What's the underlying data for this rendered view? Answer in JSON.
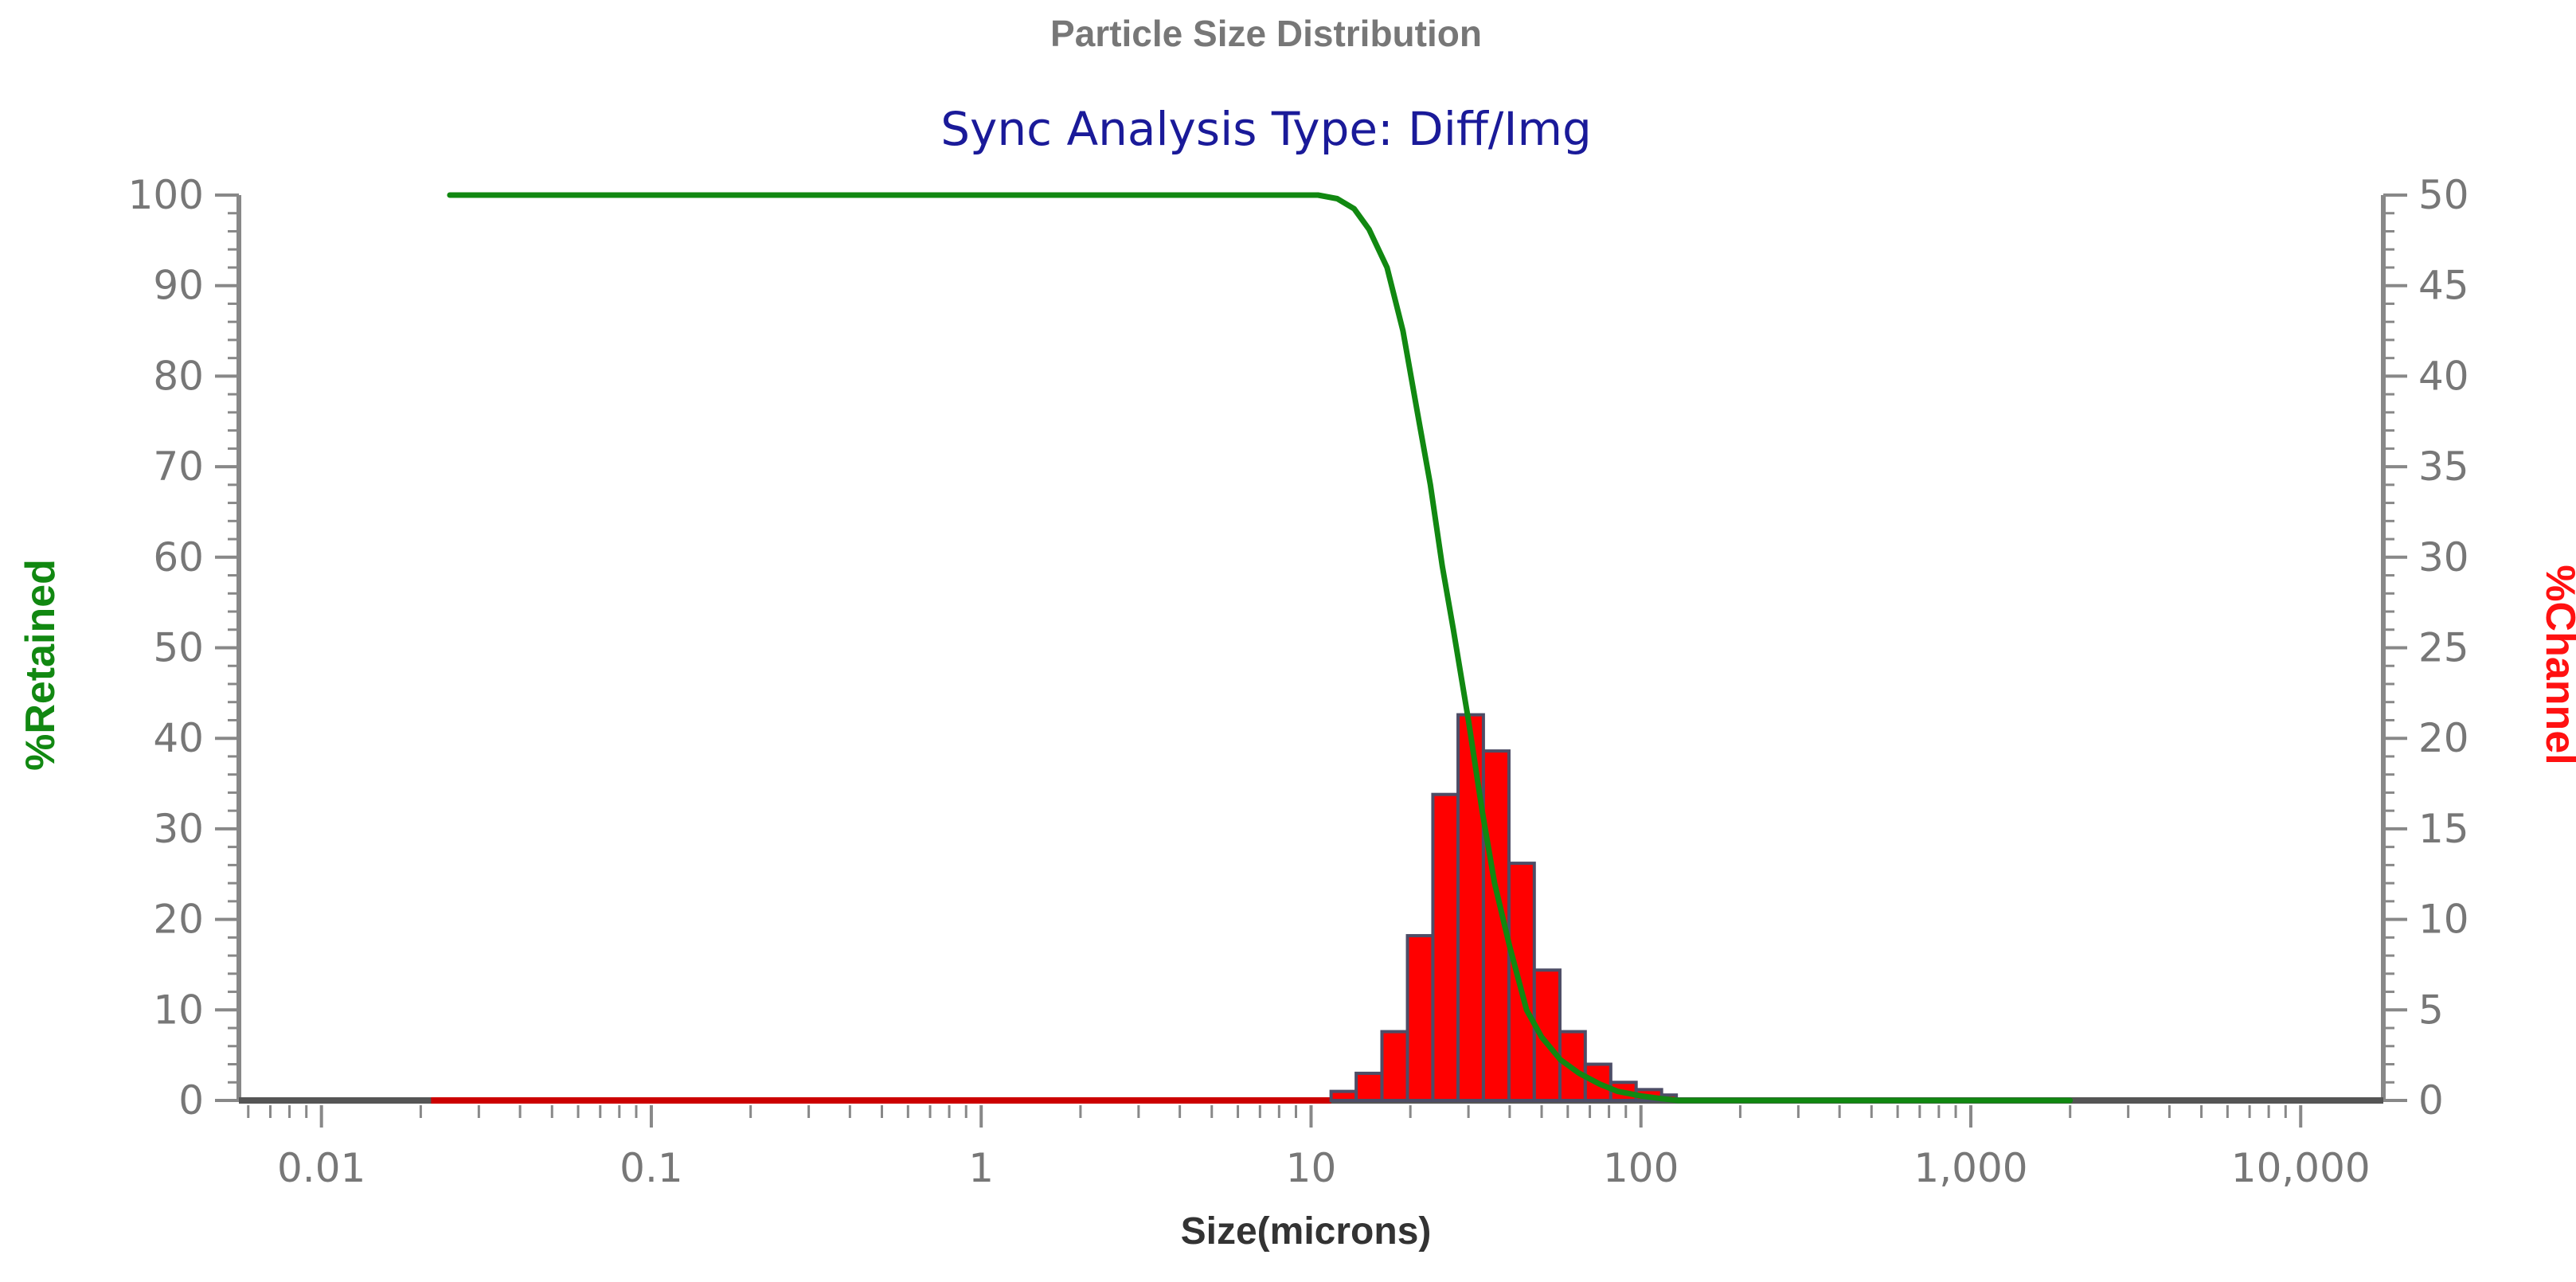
{
  "chart_data": {
    "type": "bar",
    "title": "Particle Size Distribution",
    "subtitle": "Sync Analysis Type: Diff/Img",
    "xlabel": "Size(microns)",
    "ylabel_left": "%Retained",
    "ylabel_right": "%Channel",
    "x_scale": "log",
    "xlim": [
      0.00562,
      17800
    ],
    "ylim_left": [
      0,
      100
    ],
    "ylim_right": [
      0,
      50
    ],
    "grid": false,
    "x_tick_labels": [
      {
        "value": 0.01,
        "label": "0.01"
      },
      {
        "value": 0.1,
        "label": "0.1"
      },
      {
        "value": 1,
        "label": "1"
      },
      {
        "value": 10,
        "label": "10"
      },
      {
        "value": 100,
        "label": "100"
      },
      {
        "value": 1000,
        "label": "1,000"
      },
      {
        "value": 10000,
        "label": "10,000"
      }
    ],
    "y_left_ticks": [
      0,
      10,
      20,
      30,
      40,
      50,
      60,
      70,
      80,
      90,
      100
    ],
    "y_right_ticks": [
      0,
      5,
      10,
      15,
      20,
      25,
      30,
      35,
      40,
      45,
      50
    ],
    "colors": {
      "retained_line": "#118811",
      "channel_bars": "#ff0000",
      "channel_baseline": "#cc0000",
      "bar_edge": "#4d4d66",
      "title": "#777777",
      "subtitle": "#1a1a99",
      "axis": "#888888",
      "tick_label": "#777777",
      "xlabel": "#333333",
      "ylabel_left": "#118811",
      "ylabel_right": "#ff1111",
      "x_baseline": "#555555"
    },
    "series": [
      {
        "name": "%Channel",
        "axis": "right",
        "kind": "bar",
        "baseline_range": [
          0.0215,
          11.5
        ],
        "bins": [
          {
            "x0": 11.5,
            "x1": 13.7,
            "value": 0.5
          },
          {
            "x0": 13.7,
            "x1": 16.4,
            "value": 1.5
          },
          {
            "x0": 16.4,
            "x1": 19.6,
            "value": 3.8
          },
          {
            "x0": 19.6,
            "x1": 23.4,
            "value": 9.1
          },
          {
            "x0": 23.4,
            "x1": 27.9,
            "value": 16.9
          },
          {
            "x0": 27.9,
            "x1": 33.3,
            "value": 21.3
          },
          {
            "x0": 33.3,
            "x1": 39.8,
            "value": 19.3
          },
          {
            "x0": 39.8,
            "x1": 47.5,
            "value": 13.1
          },
          {
            "x0": 47.5,
            "x1": 56.8,
            "value": 7.2
          },
          {
            "x0": 56.8,
            "x1": 67.8,
            "value": 3.8
          },
          {
            "x0": 67.8,
            "x1": 81.0,
            "value": 2.0
          },
          {
            "x0": 81.0,
            "x1": 96.7,
            "value": 1.0
          },
          {
            "x0": 96.7,
            "x1": 115.5,
            "value": 0.6
          },
          {
            "x0": 115.5,
            "x1": 128,
            "value": 0.3
          }
        ]
      },
      {
        "name": "%Retained",
        "axis": "left",
        "kind": "line",
        "points": [
          [
            0.0245,
            100
          ],
          [
            10.5,
            100
          ],
          [
            12,
            99.6
          ],
          [
            13.5,
            98.5
          ],
          [
            15,
            96.2
          ],
          [
            17,
            92
          ],
          [
            19,
            85
          ],
          [
            21,
            76
          ],
          [
            23,
            68
          ],
          [
            25,
            59
          ],
          [
            27,
            52
          ],
          [
            30,
            42
          ],
          [
            33,
            32
          ],
          [
            36,
            24
          ],
          [
            40,
            17
          ],
          [
            45,
            10
          ],
          [
            50,
            7
          ],
          [
            57,
            4.5
          ],
          [
            65,
            3
          ],
          [
            75,
            1.8
          ],
          [
            85,
            1
          ],
          [
            100,
            0.5
          ],
          [
            115,
            0.2
          ],
          [
            130,
            0
          ],
          [
            2000,
            0
          ]
        ]
      }
    ]
  }
}
